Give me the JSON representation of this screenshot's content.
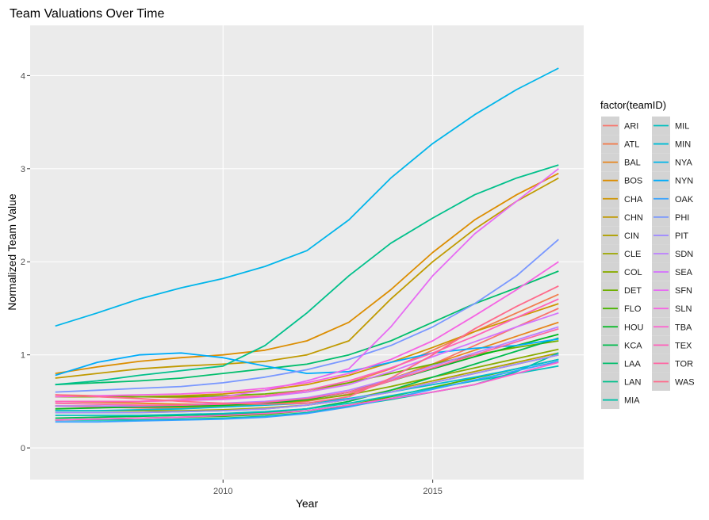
{
  "chart_data": {
    "type": "line",
    "title": "Team Valuations Over Time",
    "x_label": "Year",
    "y_label": "Normalized Team Value",
    "legend_title": "factor(teamID)",
    "x": [
      2006,
      2007,
      2008,
      2009,
      2010,
      2011,
      2012,
      2013,
      2014,
      2015,
      2016,
      2017,
      2018
    ],
    "xlim": [
      2005.4,
      2018.6
    ],
    "xticks": [
      2010,
      2015
    ],
    "ylim": [
      -0.34,
      4.54
    ],
    "yticks": [
      0,
      1,
      2,
      3,
      4
    ],
    "grid": true,
    "legend": "right",
    "series": [
      {
        "name": "ARI",
        "color": "#F8766D",
        "values": [
          0.45,
          0.44,
          0.43,
          0.43,
          0.44,
          0.46,
          0.5,
          0.58,
          0.72,
          0.9,
          1.1,
          1.3,
          1.5
        ]
      },
      {
        "name": "ATL",
        "color": "#F17E4F",
        "values": [
          0.57,
          0.56,
          0.55,
          0.54,
          0.54,
          0.56,
          0.6,
          0.7,
          0.85,
          1.05,
          1.25,
          1.45,
          1.65
        ]
      },
      {
        "name": "BAL",
        "color": "#E7851E",
        "values": [
          0.5,
          0.49,
          0.48,
          0.47,
          0.47,
          0.48,
          0.52,
          0.6,
          0.74,
          0.9,
          1.05,
          1.2,
          1.35
        ]
      },
      {
        "name": "BOS",
        "color": "#DC8D00",
        "values": [
          0.8,
          0.87,
          0.93,
          0.97,
          1.0,
          1.05,
          1.15,
          1.35,
          1.7,
          2.1,
          2.45,
          2.72,
          2.95
        ]
      },
      {
        "name": "CHA",
        "color": "#CF9400",
        "values": [
          0.55,
          0.55,
          0.55,
          0.56,
          0.58,
          0.62,
          0.68,
          0.78,
          0.92,
          1.08,
          1.25,
          1.4,
          1.55
        ]
      },
      {
        "name": "CHN",
        "color": "#C09A00",
        "values": [
          0.75,
          0.8,
          0.85,
          0.88,
          0.9,
          0.93,
          1.0,
          1.15,
          1.6,
          2.0,
          2.35,
          2.65,
          2.9
        ]
      },
      {
        "name": "CIN",
        "color": "#B0A000",
        "values": [
          0.38,
          0.38,
          0.38,
          0.39,
          0.4,
          0.42,
          0.46,
          0.52,
          0.62,
          0.72,
          0.82,
          0.92,
          1.02
        ]
      },
      {
        "name": "CLE",
        "color": "#9EA600",
        "values": [
          0.4,
          0.4,
          0.4,
          0.4,
          0.41,
          0.43,
          0.46,
          0.52,
          0.6,
          0.7,
          0.8,
          0.9,
          1.0
        ]
      },
      {
        "name": "COL",
        "color": "#89AC00",
        "values": [
          0.45,
          0.45,
          0.44,
          0.44,
          0.45,
          0.47,
          0.51,
          0.57,
          0.66,
          0.76,
          0.86,
          0.96,
          1.06
        ]
      },
      {
        "name": "DET",
        "color": "#6FB000",
        "values": [
          0.55,
          0.55,
          0.55,
          0.55,
          0.56,
          0.58,
          0.62,
          0.7,
          0.8,
          0.9,
          1.0,
          1.08,
          1.15
        ]
      },
      {
        "name": "FLO",
        "color": "#4BB400",
        "values": [
          0.3,
          0.31,
          0.32,
          0.33,
          0.34,
          0.36,
          0.4,
          0.46,
          0.55,
          0.65,
          0.75,
          0.85,
          0.95
        ]
      },
      {
        "name": "HOU",
        "color": "#00B81F",
        "values": [
          0.42,
          0.43,
          0.44,
          0.45,
          0.46,
          0.48,
          0.52,
          0.6,
          0.72,
          0.85,
          0.98,
          1.1,
          1.22
        ]
      },
      {
        "name": "KCA",
        "color": "#00BB4E",
        "values": [
          0.32,
          0.33,
          0.34,
          0.35,
          0.36,
          0.38,
          0.42,
          0.5,
          0.62,
          0.76,
          0.9,
          1.04,
          1.18
        ]
      },
      {
        "name": "LAA",
        "color": "#00BE6C",
        "values": [
          0.68,
          0.7,
          0.72,
          0.75,
          0.8,
          0.85,
          0.9,
          1.0,
          1.15,
          1.35,
          1.55,
          1.72,
          1.9
        ]
      },
      {
        "name": "LAN",
        "color": "#00C08B",
        "values": [
          0.68,
          0.72,
          0.78,
          0.83,
          0.88,
          1.1,
          1.45,
          1.85,
          2.2,
          2.47,
          2.72,
          2.9,
          3.04
        ]
      },
      {
        "name": "MIA",
        "color": "#00C1A7",
        "values": [
          0.3,
          0.3,
          0.3,
          0.31,
          0.32,
          0.34,
          0.38,
          0.45,
          0.52,
          0.6,
          0.68,
          0.82,
          1.02
        ]
      },
      {
        "name": "MIL",
        "color": "#00C0BF",
        "values": [
          0.35,
          0.35,
          0.35,
          0.36,
          0.37,
          0.39,
          0.42,
          0.48,
          0.56,
          0.64,
          0.72,
          0.8,
          0.88
        ]
      },
      {
        "name": "MIN",
        "color": "#00BCD6",
        "values": [
          0.4,
          0.4,
          0.41,
          0.42,
          0.44,
          0.46,
          0.48,
          0.53,
          0.6,
          0.68,
          0.76,
          0.85,
          0.95
        ]
      },
      {
        "name": "NYA",
        "color": "#00B5EA",
        "values": [
          1.31,
          1.45,
          1.6,
          1.72,
          1.82,
          1.95,
          2.12,
          2.45,
          2.9,
          3.27,
          3.58,
          3.85,
          4.08
        ]
      },
      {
        "name": "NYN",
        "color": "#00ACFA",
        "values": [
          0.78,
          0.92,
          1.0,
          1.02,
          0.97,
          0.88,
          0.8,
          0.82,
          0.92,
          1.02,
          1.07,
          1.1,
          1.17
        ]
      },
      {
        "name": "OAK",
        "color": "#35A2FF",
        "values": [
          0.28,
          0.28,
          0.29,
          0.3,
          0.31,
          0.33,
          0.37,
          0.44,
          0.53,
          0.63,
          0.73,
          0.83,
          0.93
        ]
      },
      {
        "name": "PHI",
        "color": "#7997FF",
        "values": [
          0.6,
          0.62,
          0.64,
          0.66,
          0.7,
          0.76,
          0.84,
          0.95,
          1.1,
          1.3,
          1.55,
          1.85,
          2.24
        ]
      },
      {
        "name": "PIT",
        "color": "#9F8BFF",
        "values": [
          0.38,
          0.38,
          0.38,
          0.39,
          0.4,
          0.42,
          0.46,
          0.52,
          0.6,
          0.7,
          0.8,
          0.9,
          1.0
        ]
      },
      {
        "name": "SDN",
        "color": "#BC7FFF",
        "values": [
          0.45,
          0.45,
          0.45,
          0.46,
          0.48,
          0.5,
          0.54,
          0.62,
          0.74,
          0.88,
          1.02,
          1.16,
          1.3
        ]
      },
      {
        "name": "SEA",
        "color": "#D474FC",
        "values": [
          0.5,
          0.5,
          0.5,
          0.51,
          0.52,
          0.55,
          0.6,
          0.68,
          0.82,
          0.98,
          1.14,
          1.3,
          1.45
        ]
      },
      {
        "name": "SFN",
        "color": "#E76BF3",
        "values": [
          0.5,
          0.5,
          0.5,
          0.52,
          0.55,
          0.62,
          0.72,
          0.85,
          1.3,
          1.85,
          2.3,
          2.65,
          3.0
        ]
      },
      {
        "name": "SLN",
        "color": "#F564E3",
        "values": [
          0.55,
          0.56,
          0.57,
          0.58,
          0.6,
          0.64,
          0.7,
          0.8,
          0.95,
          1.15,
          1.42,
          1.7,
          2.0
        ]
      },
      {
        "name": "TBA",
        "color": "#FD61D0",
        "values": [
          0.3,
          0.31,
          0.32,
          0.33,
          0.35,
          0.37,
          0.4,
          0.46,
          0.53,
          0.6,
          0.68,
          0.8,
          0.92
        ]
      },
      {
        "name": "TEX",
        "color": "#FF62BA",
        "values": [
          0.5,
          0.5,
          0.5,
          0.51,
          0.53,
          0.56,
          0.62,
          0.72,
          0.86,
          1.02,
          1.2,
          1.4,
          1.6
        ]
      },
      {
        "name": "TOR",
        "color": "#FF65A3",
        "values": [
          0.48,
          0.47,
          0.46,
          0.46,
          0.47,
          0.49,
          0.53,
          0.6,
          0.72,
          0.86,
          1.0,
          1.14,
          1.28
        ]
      },
      {
        "name": "WAS",
        "color": "#FF6A8B",
        "values": [
          0.57,
          0.55,
          0.53,
          0.5,
          0.48,
          0.47,
          0.48,
          0.55,
          0.75,
          1.0,
          1.28,
          1.52,
          1.74
        ]
      }
    ]
  }
}
